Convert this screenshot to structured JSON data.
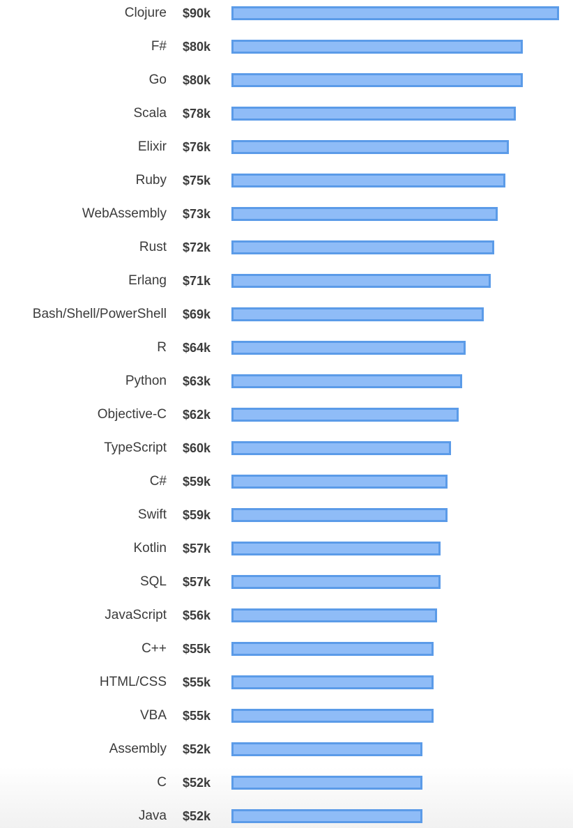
{
  "chart_data": {
    "type": "bar",
    "orientation": "horizontal",
    "colors": {
      "bar_fill": "#8fbcf7",
      "bar_border": "#5b9be8",
      "text": "#3b3b3b"
    },
    "xlim": [
      0,
      90
    ],
    "categories": [
      "Clojure",
      "F#",
      "Go",
      "Scala",
      "Elixir",
      "Ruby",
      "WebAssembly",
      "Rust",
      "Erlang",
      "Bash/Shell/PowerShell",
      "R",
      "Python",
      "Objective-C",
      "TypeScript",
      "C#",
      "Swift",
      "Kotlin",
      "SQL",
      "JavaScript",
      "C++",
      "HTML/CSS",
      "VBA",
      "Assembly",
      "C",
      "Java"
    ],
    "values": [
      90,
      80,
      80,
      78,
      76,
      75,
      73,
      72,
      71,
      69,
      64,
      63,
      62,
      60,
      59,
      59,
      57,
      57,
      56,
      55,
      55,
      55,
      52,
      52,
      52
    ],
    "value_labels": [
      "$90k",
      "$80k",
      "$80k",
      "$78k",
      "$76k",
      "$75k",
      "$73k",
      "$72k",
      "$71k",
      "$69k",
      "$64k",
      "$63k",
      "$62k",
      "$60k",
      "$59k",
      "$59k",
      "$57k",
      "$57k",
      "$56k",
      "$55k",
      "$55k",
      "$55k",
      "$52k",
      "$52k",
      "$52k"
    ]
  }
}
